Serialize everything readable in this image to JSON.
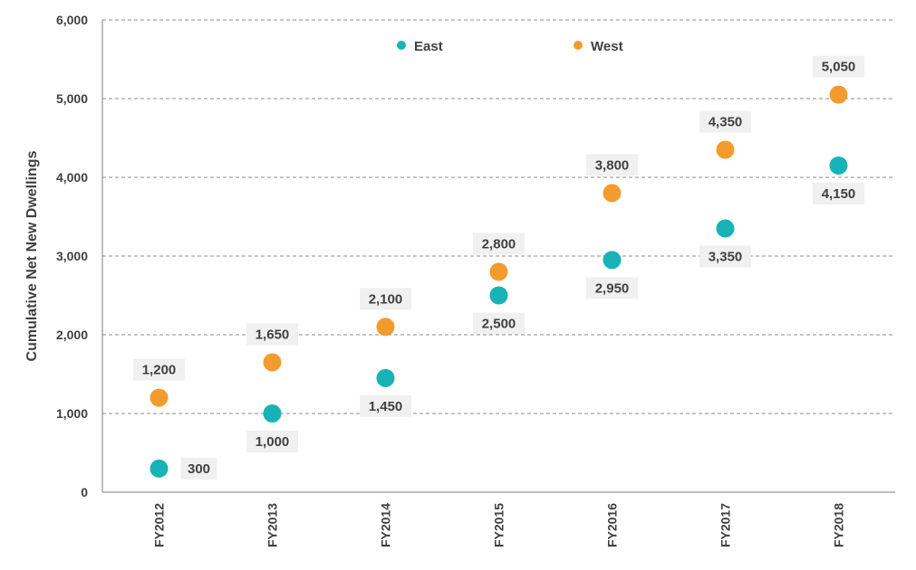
{
  "chart_data": {
    "type": "scatter",
    "title": "",
    "xlabel": "",
    "ylabel": "Cumulative Net New Dwellings",
    "categories": [
      "FY2012",
      "FY2013",
      "FY2014",
      "FY2015",
      "FY2016",
      "FY2017",
      "FY2018"
    ],
    "ylim": [
      0,
      6000
    ],
    "yticks": [
      "0",
      "1,000",
      "2,000",
      "3,000",
      "4,000",
      "5,000",
      "6,000"
    ],
    "grid": "horizontal-dashed",
    "legend_position": "top-center",
    "series": [
      {
        "name": "East",
        "color": "#17b3b7",
        "values": [
          300,
          1000,
          1450,
          2500,
          2950,
          3350,
          4150
        ],
        "labels": [
          "300",
          "1,000",
          "1,450",
          "2,500",
          "2,950",
          "3,350",
          "4,150"
        ],
        "label_position": [
          "right",
          "below",
          "below",
          "below",
          "below",
          "below",
          "below"
        ]
      },
      {
        "name": "West",
        "color": "#f39c2d",
        "values": [
          1200,
          1650,
          2100,
          2800,
          3800,
          4350,
          5050
        ],
        "labels": [
          "1,200",
          "1,650",
          "2,100",
          "2,800",
          "3,800",
          "4,350",
          "5,050"
        ],
        "label_position": [
          "above",
          "above",
          "above",
          "above",
          "above",
          "above",
          "above"
        ]
      }
    ]
  }
}
